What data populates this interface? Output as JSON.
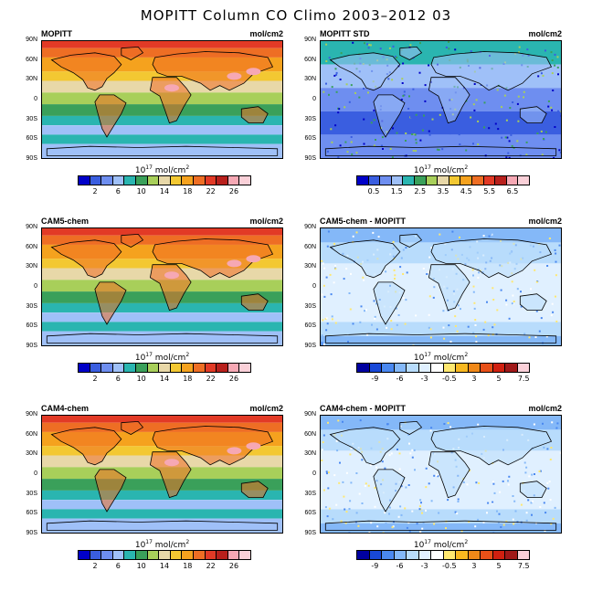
{
  "title": "MOPITT Column CO Climo 2003–2012 03",
  "lat_labels": [
    "90N",
    "60N",
    "30N",
    "0",
    "30S",
    "60S",
    "90S"
  ],
  "unit_label_prefix": "10",
  "unit_label_exp": "17",
  "unit_label_suffix": " mol/cm",
  "unit_label_exp2": "2",
  "colorbars": {
    "co": {
      "colors": [
        "#0000c8",
        "#3a5ee0",
        "#6e8ef0",
        "#9fc0f8",
        "#2ab5b0",
        "#3aa05a",
        "#a8cf5a",
        "#e8d8a8",
        "#f3c832",
        "#f5a21e",
        "#ee6e24",
        "#e23a26",
        "#b8201c",
        "#f6a8b4",
        "#fad0d8"
      ],
      "tick_labels": [
        "2",
        "6",
        "10",
        "14",
        "18",
        "22",
        "26"
      ]
    },
    "std": {
      "colors": [
        "#0000c8",
        "#3a5ee0",
        "#6e8ef0",
        "#9fc0f8",
        "#2ab5b0",
        "#3aa05a",
        "#a8cf5a",
        "#e8d8a8",
        "#f3c832",
        "#f5a21e",
        "#ee6e24",
        "#e23a26",
        "#b8201c",
        "#f6a8b4",
        "#fad0d8"
      ],
      "tick_labels": [
        "0.5",
        "1.5",
        "2.5",
        "3.5",
        "4.5",
        "5.5",
        "6.5"
      ]
    },
    "diff": {
      "colors": [
        "#0000a0",
        "#1848d8",
        "#4a88f0",
        "#84b8f8",
        "#b8dcfc",
        "#e0f0ff",
        "#ffffff",
        "#ffe870",
        "#f8b820",
        "#f08818",
        "#e85018",
        "#d02010",
        "#a01818",
        "#fad0d8"
      ],
      "tick_labels": [
        "-9",
        "-6",
        "-3",
        "-0.5",
        "3",
        "5",
        "7.5"
      ]
    }
  },
  "panels": [
    {
      "title": "MOPITT",
      "unit": "mol/cm2",
      "kind": "co",
      "colorbar": "co"
    },
    {
      "title": "MOPITT STD",
      "unit": "mol/cm2",
      "kind": "std",
      "colorbar": "std"
    },
    {
      "title": "CAM5-chem",
      "unit": "mol/cm2",
      "kind": "cam5",
      "colorbar": "co"
    },
    {
      "title": "CAM5-chem - MOPITT",
      "unit": "mol/cm2",
      "kind": "diff5",
      "colorbar": "diff"
    },
    {
      "title": "CAM4-chem",
      "unit": "mol/cm2",
      "kind": "cam4",
      "colorbar": "co"
    },
    {
      "title": "CAM4-chem - MOPITT",
      "unit": "mol/cm2",
      "kind": "diff4",
      "colorbar": "diff"
    }
  ]
}
